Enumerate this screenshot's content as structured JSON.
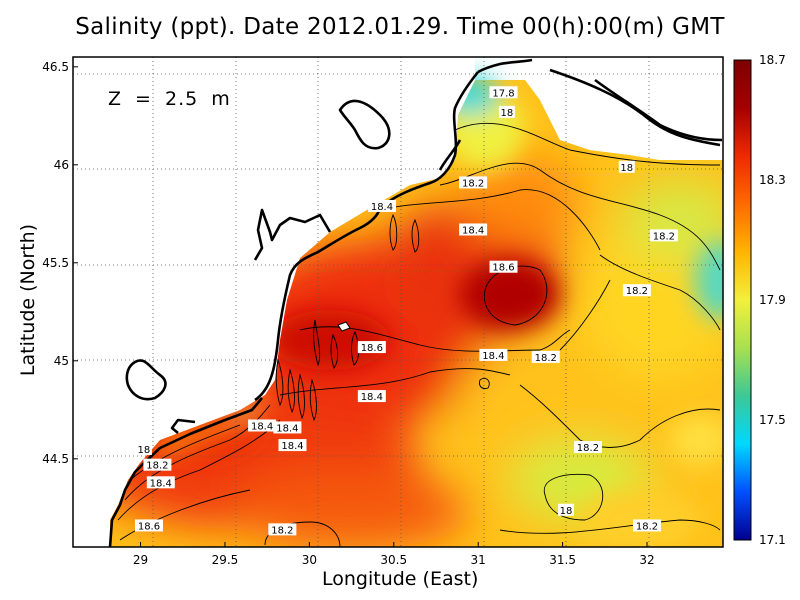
{
  "title": "Salinity (ppt). Date 2012.01.29. Time 00(h):00(m) GMT",
  "depth_label": "Z = 2.5 m",
  "x_axis": {
    "label": "Longitude (East)",
    "range": [
      28.6,
      32.45
    ],
    "ticks": [
      29,
      29.5,
      30,
      30.5,
      31,
      31.5,
      32
    ],
    "tick_labels": [
      "29",
      "29.5",
      "30",
      "30.5",
      "31",
      "31.5",
      "32"
    ]
  },
  "y_axis": {
    "label": "Latitude (North)",
    "range": [
      44.05,
      46.55
    ],
    "ticks": [
      44.5,
      45,
      45.5,
      46,
      46.5
    ],
    "tick_labels": [
      "44.5",
      "45",
      "45.5",
      "46",
      "46.5"
    ]
  },
  "colorbar": {
    "min": 17.1,
    "max": 18.7,
    "tick_labels": [
      "18.7",
      "18.3",
      "17.9",
      "17.5",
      "17.1"
    ],
    "colors": [
      "#00008f",
      "#0050ff",
      "#00d8ff",
      "#3cc896",
      "#a8e050",
      "#f2f03c",
      "#ffb400",
      "#ff6a00",
      "#ee2a00",
      "#a50000",
      "#7e0000"
    ]
  },
  "contour_labels": [
    {
      "text": "17.8",
      "lon": 31.15,
      "lat": 46.37
    },
    {
      "text": "18",
      "lon": 31.17,
      "lat": 46.27
    },
    {
      "text": "18",
      "lon": 31.88,
      "lat": 45.99
    },
    {
      "text": "18.2",
      "lon": 30.97,
      "lat": 45.91
    },
    {
      "text": "18.4",
      "lon": 30.43,
      "lat": 45.79
    },
    {
      "text": "18.4",
      "lon": 30.97,
      "lat": 45.67
    },
    {
      "text": "18.2",
      "lon": 32.1,
      "lat": 45.64
    },
    {
      "text": "18.6",
      "lon": 31.15,
      "lat": 45.48
    },
    {
      "text": "18.2",
      "lon": 31.94,
      "lat": 45.36
    },
    {
      "text": "18.6",
      "lon": 30.37,
      "lat": 45.07
    },
    {
      "text": "18.4",
      "lon": 31.09,
      "lat": 45.03
    },
    {
      "text": "18.2",
      "lon": 31.4,
      "lat": 45.02
    },
    {
      "text": "18.4",
      "lon": 30.37,
      "lat": 44.82
    },
    {
      "text": "18.4",
      "lon": 29.72,
      "lat": 44.67
    },
    {
      "text": "18.4",
      "lon": 29.87,
      "lat": 44.66
    },
    {
      "text": "18.4",
      "lon": 29.9,
      "lat": 44.57
    },
    {
      "text": "18",
      "lon": 29.02,
      "lat": 44.55
    },
    {
      "text": "18.2",
      "lon": 29.1,
      "lat": 44.47
    },
    {
      "text": "18.4",
      "lon": 29.12,
      "lat": 44.38
    },
    {
      "text": "18.2",
      "lon": 31.65,
      "lat": 44.56
    },
    {
      "text": "18",
      "lon": 31.52,
      "lat": 44.24
    },
    {
      "text": "18.2",
      "lon": 32.0,
      "lat": 44.16
    },
    {
      "text": "18.6",
      "lon": 29.05,
      "lat": 44.16
    },
    {
      "text": "18.2",
      "lon": 29.84,
      "lat": 44.14
    }
  ]
}
